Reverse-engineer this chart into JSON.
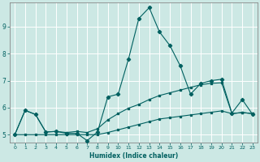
{
  "xlabel": "Humidex (Indice chaleur)",
  "ylabel": "",
  "background_color": "#cce8e4",
  "grid_color": "#c0dcd8",
  "line_color": "#006060",
  "xlim": [
    -0.5,
    23.5
  ],
  "ylim": [
    4.7,
    9.9
  ],
  "xticks": [
    0,
    1,
    2,
    3,
    4,
    5,
    6,
    7,
    8,
    9,
    10,
    11,
    12,
    13,
    14,
    15,
    16,
    17,
    18,
    19,
    20,
    21,
    22,
    23
  ],
  "yticks": [
    5,
    6,
    7,
    8,
    9
  ],
  "series1_x": [
    0,
    1,
    2,
    3,
    4,
    5,
    6,
    7,
    8,
    9,
    10,
    11,
    12,
    13,
    14,
    15,
    16,
    17,
    18,
    19,
    20,
    21,
    22,
    23
  ],
  "series1_y": [
    5.0,
    5.9,
    5.75,
    5.1,
    5.12,
    5.05,
    5.05,
    4.78,
    5.1,
    6.4,
    6.5,
    7.8,
    9.3,
    9.7,
    8.8,
    8.3,
    7.55,
    6.5,
    6.9,
    7.0,
    7.05,
    5.8,
    6.3,
    5.75
  ],
  "series2_x": [
    0,
    1,
    2,
    3,
    4,
    5,
    6,
    7,
    8,
    9,
    10,
    11,
    12,
    13,
    14,
    15,
    16,
    17,
    18,
    19,
    20,
    21,
    22,
    23
  ],
  "series2_y": [
    5.0,
    5.9,
    5.75,
    5.1,
    5.12,
    5.08,
    5.12,
    5.08,
    5.22,
    5.55,
    5.78,
    5.98,
    6.12,
    6.3,
    6.45,
    6.55,
    6.65,
    6.75,
    6.85,
    6.9,
    6.92,
    5.78,
    5.82,
    5.78
  ],
  "series3_x": [
    0,
    1,
    2,
    3,
    4,
    5,
    6,
    7,
    8,
    9,
    10,
    11,
    12,
    13,
    14,
    15,
    16,
    17,
    18,
    19,
    20,
    21,
    22,
    23
  ],
  "series3_y": [
    5.0,
    5.0,
    5.0,
    5.0,
    5.0,
    5.0,
    5.0,
    5.0,
    5.0,
    5.08,
    5.18,
    5.28,
    5.38,
    5.48,
    5.58,
    5.63,
    5.68,
    5.73,
    5.78,
    5.83,
    5.88,
    5.78,
    5.82,
    5.78
  ]
}
